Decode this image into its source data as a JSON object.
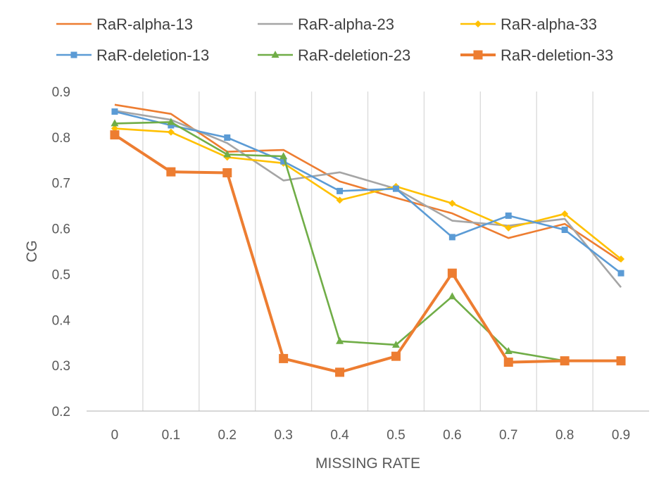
{
  "chart_data": {
    "type": "line",
    "xlabel": "MISSING RATE",
    "ylabel": "CG",
    "categories": [
      "0",
      "0.1",
      "0.2",
      "0.3",
      "0.4",
      "0.5",
      "0.6",
      "0.7",
      "0.8",
      "0.9"
    ],
    "ylim": [
      0.2,
      0.9
    ],
    "yticks": [
      "0.2",
      "0.3",
      "0.4",
      "0.5",
      "0.6",
      "0.7",
      "0.8",
      "0.9"
    ],
    "grid": "vertical",
    "legend_position": "top",
    "series": [
      {
        "name": "RaR-alpha-13",
        "color": "#ED7D31",
        "marker": "none",
        "values": [
          0.871,
          0.851,
          0.768,
          0.772,
          0.703,
          0.667,
          0.633,
          0.579,
          0.61,
          0.528
        ]
      },
      {
        "name": "RaR-alpha-23",
        "color": "#A5A5A5",
        "marker": "none",
        "values": [
          0.858,
          0.838,
          0.787,
          0.705,
          0.723,
          0.687,
          0.617,
          0.606,
          0.621,
          0.471
        ]
      },
      {
        "name": "RaR-alpha-33",
        "color": "#FFC000",
        "marker": "diamond",
        "values": [
          0.819,
          0.811,
          0.756,
          0.743,
          0.662,
          0.692,
          0.655,
          0.601,
          0.632,
          0.533
        ]
      },
      {
        "name": "RaR-deletion-13",
        "color": "#5B9BD5",
        "marker": "square-small",
        "values": [
          0.856,
          0.826,
          0.799,
          0.747,
          0.682,
          0.687,
          0.581,
          0.628,
          0.597,
          0.502
        ]
      },
      {
        "name": "RaR-deletion-23",
        "color": "#70AD47",
        "marker": "triangle",
        "values": [
          0.83,
          0.833,
          0.762,
          0.758,
          0.353,
          0.345,
          0.451,
          0.331,
          0.31,
          0.31
        ]
      },
      {
        "name": "RaR-deletion-33",
        "color": "#ED7D31",
        "marker": "square-large",
        "values": [
          0.805,
          0.724,
          0.722,
          0.315,
          0.285,
          0.32,
          0.502,
          0.307,
          0.31,
          0.31
        ]
      }
    ]
  }
}
